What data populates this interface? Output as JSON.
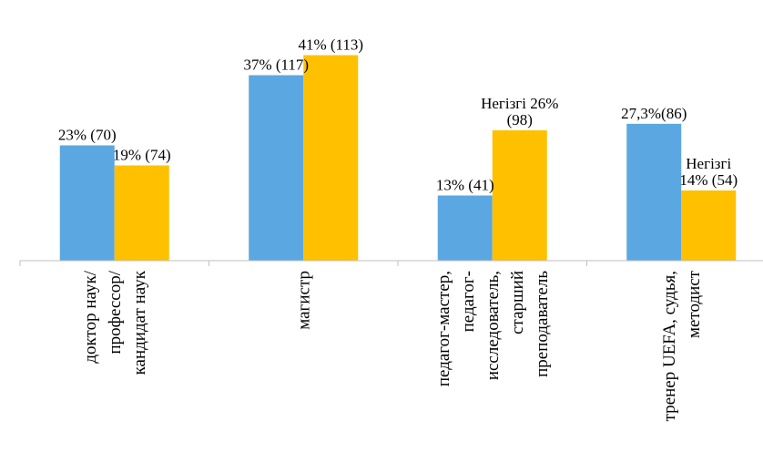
{
  "chart_data": {
    "type": "bar",
    "title": "",
    "xlabel": "",
    "ylabel": "",
    "ylim": [
      0,
      45
    ],
    "grid": false,
    "legend": "none",
    "categories": [
      [
        "доктор наук/",
        "профессор/",
        "кандидат наук"
      ],
      [
        "магистр"
      ],
      [
        "педагог-мастер,",
        "педагог-",
        "исследователь,",
        "старший",
        "преподаватель"
      ],
      [
        "тренер UEFA, судья,",
        "методист"
      ]
    ],
    "series": [
      {
        "color": "#5BA7E1",
        "values": [
          23,
          37,
          13,
          27.3
        ],
        "labels": [
          [
            "23% (70)"
          ],
          [
            "37% (117)"
          ],
          [
            "13% (41)"
          ],
          [
            "27,3%(86)"
          ]
        ]
      },
      {
        "color": "#FFC000",
        "values": [
          19,
          41,
          26,
          14
        ],
        "labels": [
          [
            "19% (74)"
          ],
          [
            "41% (113)"
          ],
          [
            "Негізгі 26%",
            "(98)"
          ],
          [
            "Негізгі",
            "14% (54)"
          ]
        ]
      }
    ]
  }
}
